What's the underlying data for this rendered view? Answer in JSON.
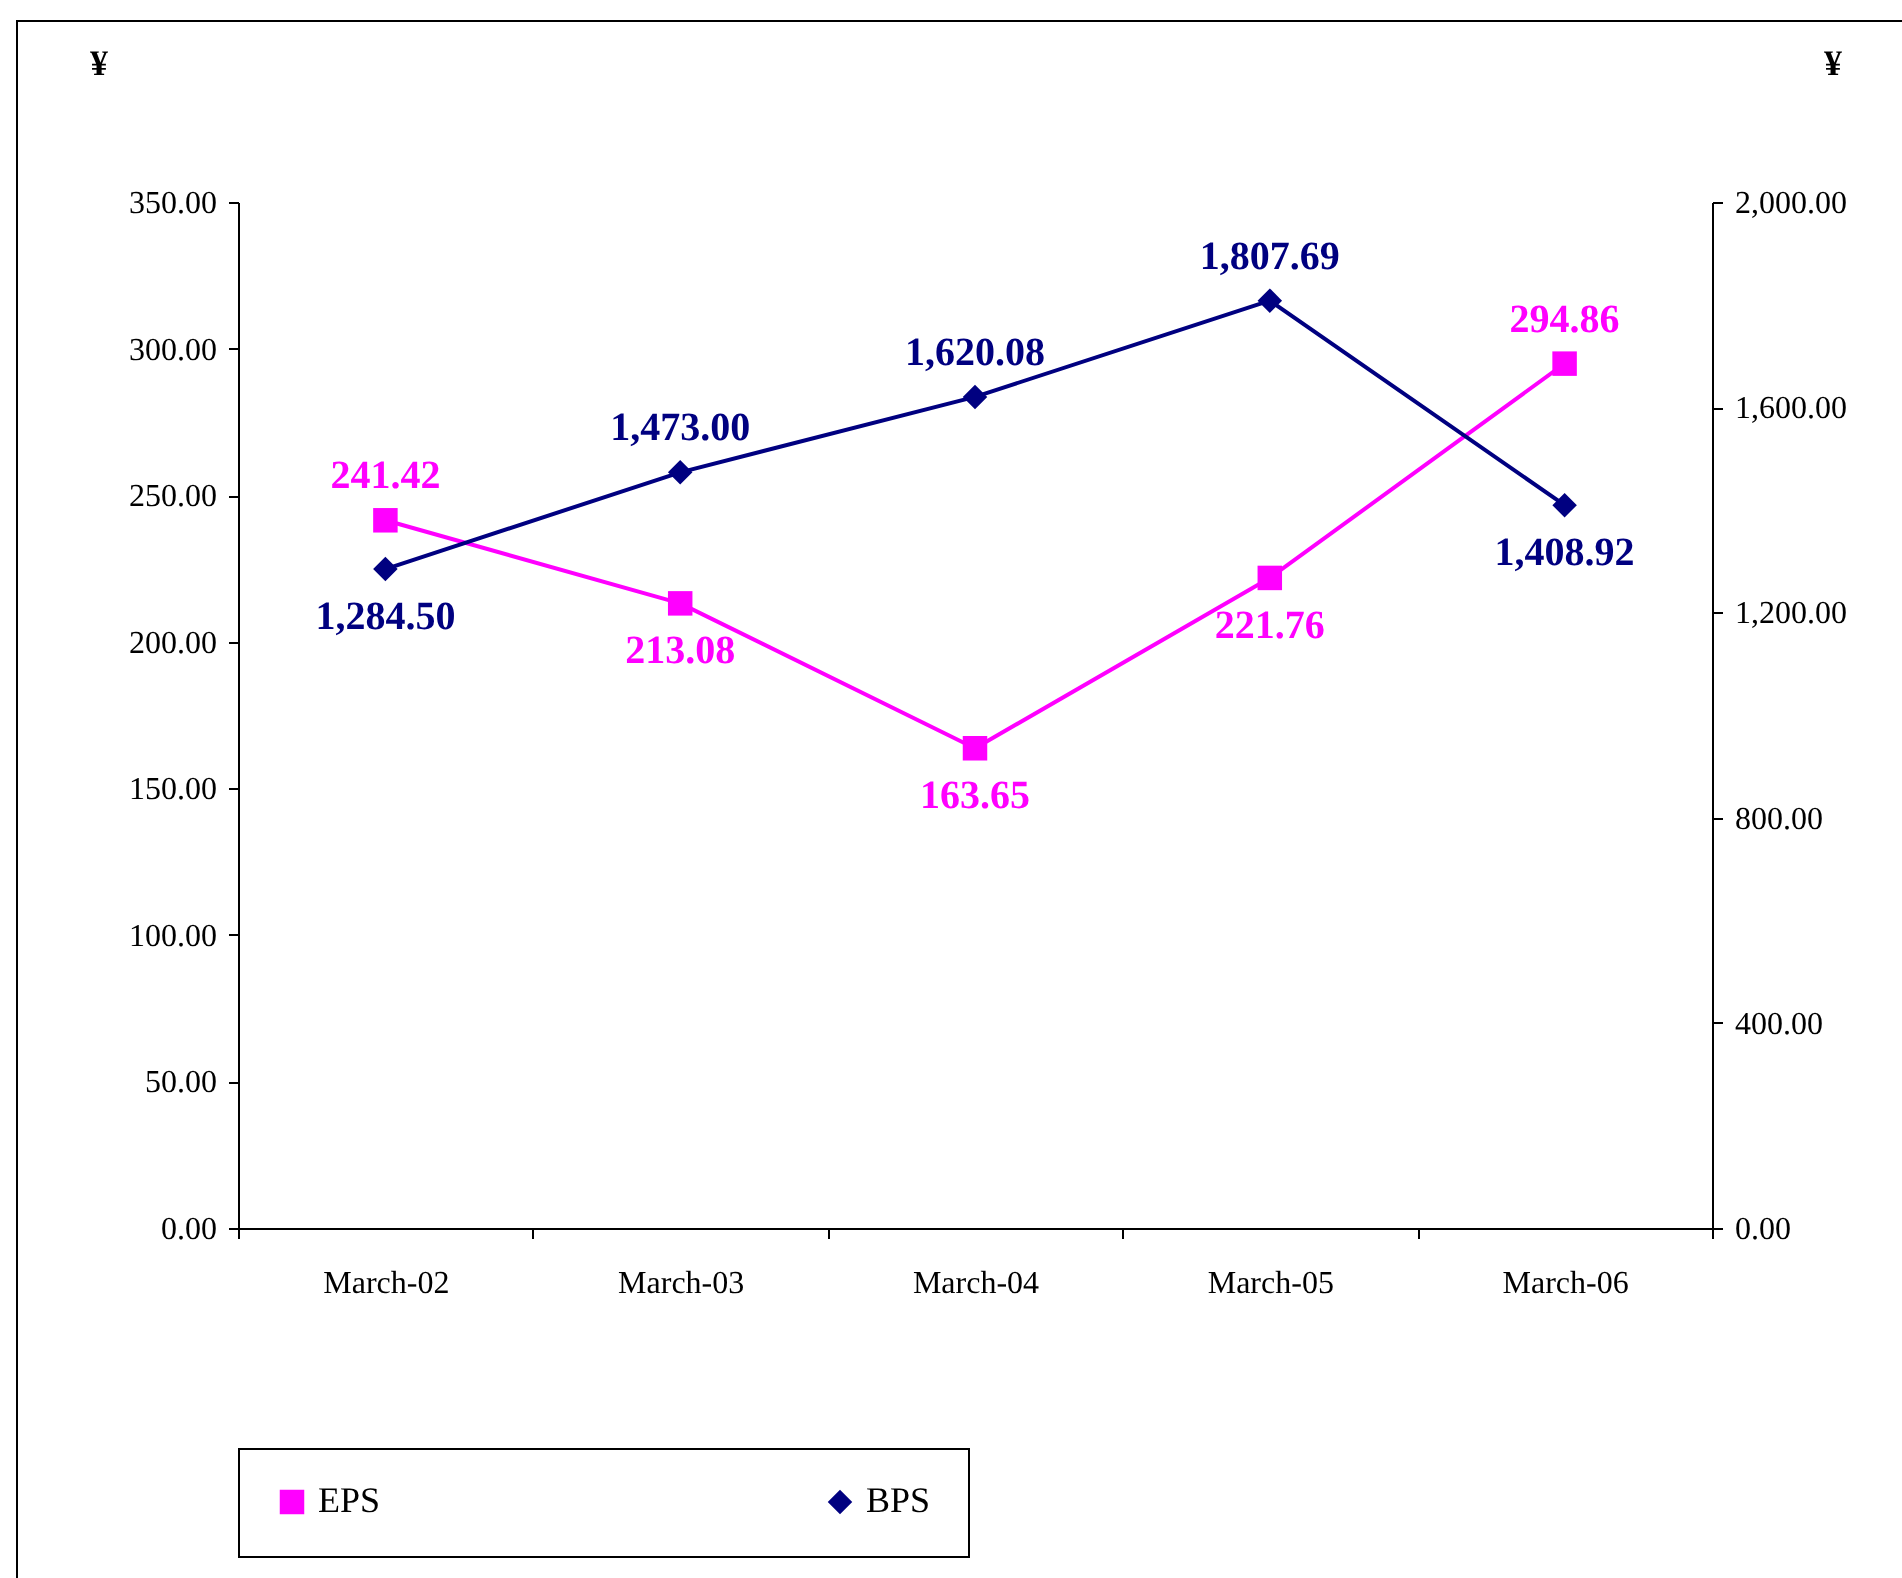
{
  "chart_data": {
    "type": "line",
    "ylabel": "¥",
    "y2label": "¥",
    "categories": [
      "March-02",
      "March-03",
      "March-04",
      "March-05",
      "March-06"
    ],
    "series": [
      {
        "name": "EPS",
        "color": "#ff00ff",
        "marker": "square",
        "values": [
          241.42,
          213.08,
          163.65,
          221.76,
          294.86
        ],
        "value_labels": [
          "241.42",
          "213.08",
          "163.65",
          "221.76",
          "294.86"
        ]
      },
      {
        "name": "BPS",
        "color": "#000080",
        "marker": "diamond",
        "axis": "y2",
        "values": [
          1284.5,
          1473.0,
          1620.08,
          1807.69,
          1408.92
        ],
        "value_labels": [
          "1,284.50",
          "1,473.00",
          "1,620.08",
          "1,807.69",
          "1,408.92"
        ]
      }
    ],
    "ylim": [
      0,
      350
    ],
    "yticks": [
      {
        "value": 0,
        "label": "0.00"
      },
      {
        "value": 50,
        "label": "50.00"
      },
      {
        "value": 100,
        "label": "100.00"
      },
      {
        "value": 150,
        "label": "150.00"
      },
      {
        "value": 200,
        "label": "200.00"
      },
      {
        "value": 250,
        "label": "250.00"
      },
      {
        "value": 300,
        "label": "300.00"
      },
      {
        "value": 350,
        "label": "350.00"
      }
    ],
    "y2lim": [
      0,
      2000
    ],
    "y2ticks": [
      {
        "value": 0,
        "label": "0.00"
      },
      {
        "value": 400,
        "label": "400.00"
      },
      {
        "value": 800,
        "label": "800.00"
      },
      {
        "value": 1200,
        "label": "1,200.00"
      },
      {
        "value": 1600,
        "label": "1,600.00"
      },
      {
        "value": 2000,
        "label": "2,000.00"
      }
    ],
    "grid": false,
    "legend": "bottom"
  }
}
